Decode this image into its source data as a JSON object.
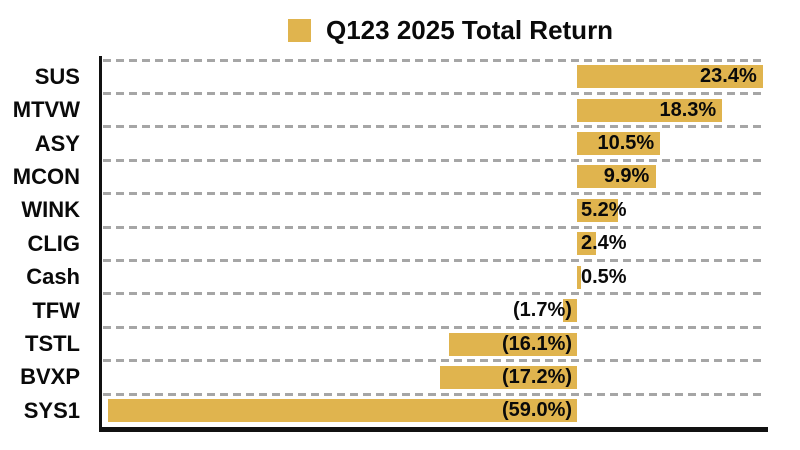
{
  "title": "Q123 2025 Total Return",
  "legend": {
    "swatch_icon": "gold-square-swatch",
    "label": "Q123 2025 Total Return",
    "position": "top-center"
  },
  "colors": {
    "bar": "#E0B44E",
    "gridline": "#A6A6A6",
    "axis": "#111111",
    "text": "#0A0A0A",
    "background": "#FFFFFF"
  },
  "chart_data": {
    "type": "bar",
    "orientation": "horizontal",
    "title": "Q123 2025 Total Return",
    "series_name": "Q123 2025 Total Return",
    "categories": [
      "SUS",
      "MTVW",
      "ASY",
      "MCON",
      "WINK",
      "CLIG",
      "Cash",
      "TFW",
      "TSTL",
      "BVXP",
      "SYS1"
    ],
    "values": [
      23.4,
      18.3,
      10.5,
      9.9,
      5.2,
      2.4,
      0.5,
      -1.7,
      -16.1,
      -17.2,
      -59.0
    ],
    "value_labels": [
      "23.4%",
      "18.3%",
      "10.5%",
      "9.9%",
      "5.2%",
      "2.4%",
      "0.5%",
      "(1.7%)",
      "(16.1%)",
      "(17.2%)",
      "(59.0%)"
    ],
    "value_format": "percent, negatives in parentheses",
    "xlabel": "",
    "ylabel": "",
    "xlim": [
      -60,
      24
    ],
    "grid": "dashed horizontal row separators",
    "legend_position": "top",
    "bar_color": "#E0B44E"
  }
}
